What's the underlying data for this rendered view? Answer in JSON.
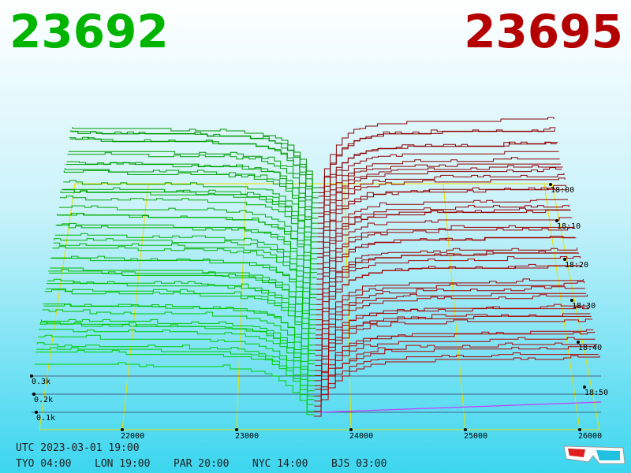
{
  "header": {
    "bid": "23692",
    "ask": "23695"
  },
  "price_axis": {
    "ticks": [
      "22000",
      "23000",
      "24000",
      "25000",
      "26000"
    ]
  },
  "volume_axis": {
    "ticks": [
      "0.3k",
      "0.2k",
      "0.1k"
    ]
  },
  "time_axis": {
    "ticks": [
      "18:00",
      "18:10",
      "18:20",
      "18:30",
      "18:40",
      "18:50"
    ]
  },
  "footer": {
    "utc": "UTC 2023-03-01 19:00",
    "cities": [
      "TYO 04:00",
      "LON 19:00",
      "PAR 20:00",
      "NYC 14:00",
      "BJS 03:00"
    ]
  }
}
